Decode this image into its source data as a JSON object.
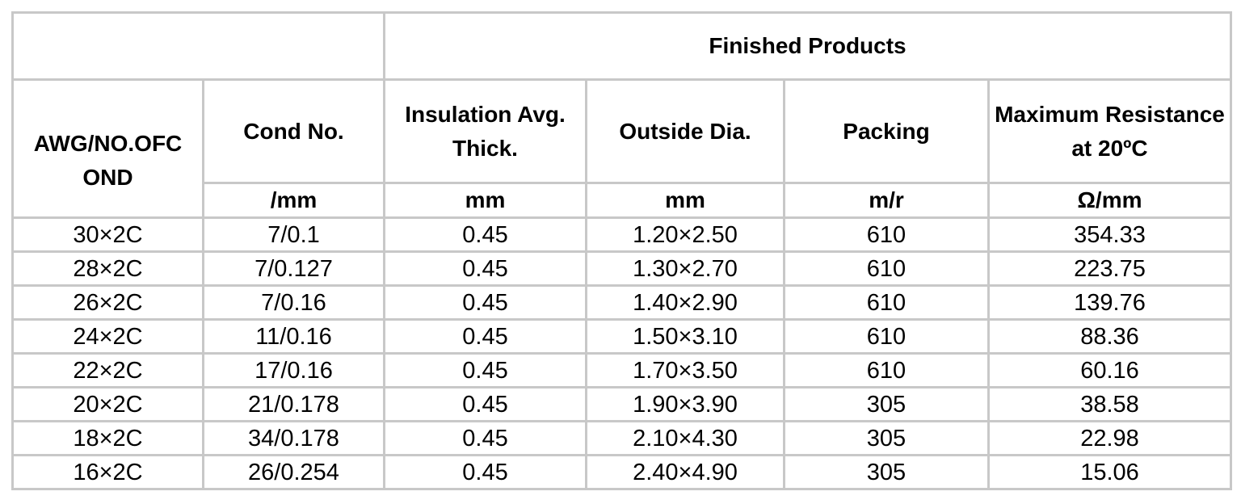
{
  "table": {
    "group_header": "Finished Products",
    "headers": {
      "awg": "AWG/NO.OFC OND",
      "cond": "Cond No.",
      "insulation": "Insulation Avg. Thick.",
      "outside": "Outside Dia.",
      "packing": "Packing",
      "resistance": "Maximum Resistance at 20ºC"
    },
    "units": {
      "cond": "/mm",
      "insulation": "mm",
      "outside": "mm",
      "packing": "m/r",
      "resistance": "Ω/mm"
    },
    "rows": [
      {
        "awg": "30×2C",
        "cond": "7/0.1",
        "insulation": "0.45",
        "outside": "1.20×2.50",
        "packing": "610",
        "resistance": "354.33"
      },
      {
        "awg": "28×2C",
        "cond": "7/0.127",
        "insulation": "0.45",
        "outside": "1.30×2.70",
        "packing": "610",
        "resistance": "223.75"
      },
      {
        "awg": "26×2C",
        "cond": "7/0.16",
        "insulation": "0.45",
        "outside": "1.40×2.90",
        "packing": "610",
        "resistance": "139.76"
      },
      {
        "awg": "24×2C",
        "cond": "11/0.16",
        "insulation": "0.45",
        "outside": "1.50×3.10",
        "packing": "610",
        "resistance": "88.36"
      },
      {
        "awg": "22×2C",
        "cond": "17/0.16",
        "insulation": "0.45",
        "outside": "1.70×3.50",
        "packing": "610",
        "resistance": "60.16"
      },
      {
        "awg": "20×2C",
        "cond": "21/0.178",
        "insulation": "0.45",
        "outside": "1.90×3.90",
        "packing": "305",
        "resistance": "38.58"
      },
      {
        "awg": "18×2C",
        "cond": "34/0.178",
        "insulation": "0.45",
        "outside": "2.10×4.30",
        "packing": "305",
        "resistance": "22.98"
      },
      {
        "awg": "16×2C",
        "cond": "26/0.254",
        "insulation": "0.45",
        "outside": "2.40×4.90",
        "packing": "305",
        "resistance": "15.06"
      }
    ]
  }
}
